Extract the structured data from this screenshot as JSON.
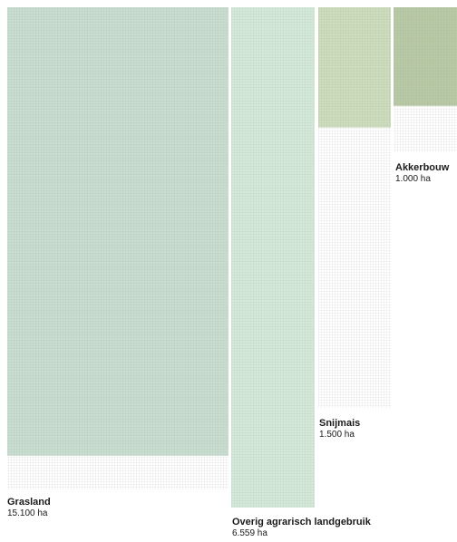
{
  "chart_data": {
    "type": "bar",
    "title": "",
    "unit": "ha",
    "categories": [
      "Grasland",
      "Overig agrarisch landgebruik",
      "Snijmais",
      "Akkerbouw"
    ],
    "series": [
      {
        "values": [
          15100,
          6559,
          1500,
          1000
        ],
        "value_labels": [
          "15.100 ha",
          "6.559 ha",
          "1.500 ha",
          "1.000 ha"
        ],
        "colors": [
          "#c9ddd1",
          "#d4e9d9",
          "#cddcbc",
          "#b9c9a6"
        ]
      }
    ],
    "grid_fill_fraction": [
      0.93,
      1.0,
      0.3,
      0.68
    ],
    "grid_color": "#d8d8d8",
    "grid": true,
    "legend": "none"
  }
}
